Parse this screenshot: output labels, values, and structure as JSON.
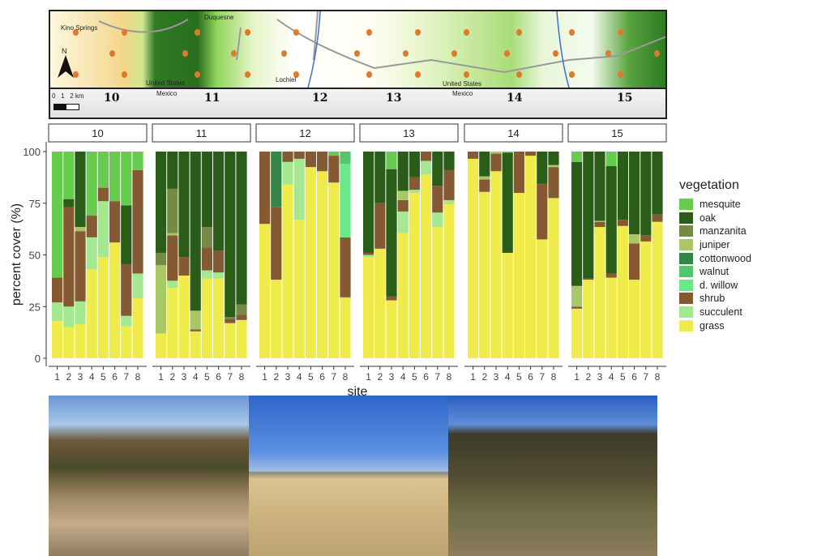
{
  "map": {
    "places": [
      "Kino Springs",
      "Duquesne",
      "Lochiel"
    ],
    "border_labels": {
      "us": "United States",
      "mx": "Mexico",
      "us2": "United States",
      "mx2": "Mexico"
    },
    "north_label": "N",
    "scale_label": "0   1   2 km",
    "region_labels": [
      "10",
      "11",
      "12",
      "13",
      "14",
      "15"
    ]
  },
  "chart_data": {
    "type": "bar",
    "stacked": true,
    "facets": [
      "10",
      "11",
      "12",
      "13",
      "14",
      "15"
    ],
    "categories": [
      "1",
      "2",
      "3",
      "4",
      "5",
      "6",
      "7",
      "8"
    ],
    "xlabel": "site",
    "ylabel": "percent cover (%)",
    "ylim": [
      0,
      100
    ],
    "yticks": [
      "0",
      "25",
      "50",
      "75",
      "100"
    ],
    "legend_title": "vegetation",
    "legend_position": "right",
    "stack_order": [
      "grass",
      "succulent",
      "shrub",
      "d. willow",
      "walnut",
      "cottonwood",
      "juniper",
      "manzanita",
      "oak",
      "mesquite"
    ],
    "legend": [
      "mesquite",
      "oak",
      "manzanita",
      "juniper",
      "cottonwood",
      "walnut",
      "d. willow",
      "shrub",
      "succulent",
      "grass"
    ],
    "colors": {
      "mesquite": "#66cc4d",
      "oak": "#2a5e18",
      "manzanita": "#758a45",
      "juniper": "#a8c866",
      "cottonwood": "#348548",
      "walnut": "#55c470",
      "d. willow": "#6be887",
      "shrub": "#855a33",
      "succulent": "#a4e890",
      "grass": "#eeeb4a"
    },
    "data": {
      "10": [
        {
          "grass": 18,
          "succulent": 9,
          "shrub": 12,
          "mesquite": 61
        },
        {
          "grass": 15,
          "succulent": 10,
          "shrub": 48,
          "oak": 4,
          "mesquite": 23
        },
        {
          "grass": 16.5,
          "succulent": 11,
          "shrub": 34,
          "juniper": 2,
          "oak": 36.5
        },
        {
          "grass": 43,
          "succulent": 15.5,
          "shrub": 10.5,
          "mesquite": 31
        },
        {
          "grass": 49,
          "succulent": 27,
          "shrub": 6.5,
          "mesquite": 17.5
        },
        {
          "grass": 56,
          "shrub": 20,
          "mesquite": 24
        },
        {
          "grass": 15.5,
          "succulent": 5,
          "shrub": 25,
          "oak": 28.5,
          "mesquite": 26
        },
        {
          "grass": 29,
          "succulent": 12,
          "shrub": 50,
          "mesquite": 9
        }
      ],
      "11": [
        {
          "grass": 12,
          "juniper": 33,
          "manzanita": 6,
          "oak": 49
        },
        {
          "grass": 34,
          "succulent": 3.5,
          "shrub": 22,
          "juniper": 1,
          "manzanita": 21.5,
          "oak": 18
        },
        {
          "grass": 40,
          "shrub": 9,
          "oak": 51
        },
        {
          "grass": 13,
          "shrub": 1,
          "juniper": 9,
          "oak": 77
        },
        {
          "grass": 38.5,
          "succulent": 4,
          "shrub": 11,
          "manzanita": 10,
          "oak": 36.5
        },
        {
          "grass": 38.5,
          "succulent": 3,
          "shrub": 10.5,
          "oak": 48
        },
        {
          "grass": 17,
          "shrub": 2,
          "manzanita": 1,
          "oak": 80
        },
        {
          "grass": 18.5,
          "shrub": 2.5,
          "manzanita": 5,
          "oak": 74
        }
      ],
      "12": [
        {
          "grass": 65,
          "shrub": 35
        },
        {
          "grass": 38,
          "shrub": 35,
          "cottonwood": 27
        },
        {
          "grass": 84,
          "succulent": 11,
          "shrub": 5
        },
        {
          "grass": 67,
          "succulent": 29.5,
          "shrub": 3.5
        },
        {
          "grass": 92.5,
          "shrub": 7.5
        },
        {
          "grass": 90.5,
          "shrub": 9.5
        },
        {
          "grass": 85,
          "shrub": 13,
          "mesquite": 2
        },
        {
          "grass": 29,
          "succulent": 0.5,
          "shrub": 29,
          "d. willow": 35.5,
          "walnut": 6
        }
      ],
      "13": [
        {
          "grass": 49,
          "succulent": 1,
          "shrub": 1,
          "oak": 49
        },
        {
          "grass": 53,
          "shrub": 22,
          "oak": 25
        },
        {
          "grass": 28,
          "shrub": 2,
          "oak": 61.5,
          "mesquite": 8.5
        },
        {
          "grass": 60.5,
          "succulent": 10.5,
          "shrub": 5.5,
          "juniper": 4.5,
          "oak": 19
        },
        {
          "grass": 80,
          "succulent": 1.5,
          "shrub": 6,
          "oak": 12.5
        },
        {
          "grass": 89,
          "succulent": 6.5,
          "shrub": 4.5
        },
        {
          "grass": 63.5,
          "succulent": 7,
          "shrub": 13,
          "oak": 16.5
        },
        {
          "grass": 74.5,
          "succulent": 2,
          "shrub": 14.5,
          "oak": 9
        }
      ],
      "14": [
        {
          "grass": 96.5,
          "shrub": 3.5
        },
        {
          "grass": 80.5,
          "shrub": 6,
          "juniper": 1.5,
          "oak": 12
        },
        {
          "grass": 90.5,
          "shrub": 8.5,
          "juniper": 1
        },
        {
          "grass": 51,
          "oak": 48.5,
          "mesquite": 0.5
        },
        {
          "grass": 80,
          "shrub": 20
        },
        {
          "grass": 98,
          "shrub": 2
        },
        {
          "grass": 57.5,
          "shrub": 27,
          "oak": 15.5
        },
        {
          "grass": 77.5,
          "shrub": 15,
          "juniper": 1,
          "oak": 6.5
        }
      ],
      "15": [
        {
          "grass": 24,
          "shrub": 1,
          "juniper": 10,
          "oak": 60,
          "mesquite": 5
        },
        {
          "grass": 38,
          "shrub": 0.5,
          "oak": 61.5
        },
        {
          "grass": 63.5,
          "shrub": 2.5,
          "juniper": 0.5,
          "oak": 33.5
        },
        {
          "grass": 39,
          "shrub": 2,
          "oak": 52,
          "mesquite": 7
        },
        {
          "grass": 64,
          "shrub": 3,
          "oak": 33
        },
        {
          "grass": 38,
          "shrub": 17.5,
          "juniper": 4.5,
          "oak": 40
        },
        {
          "grass": 56.5,
          "shrub": 3,
          "oak": 40.5
        },
        {
          "grass": 66,
          "shrub": 3.5,
          "oak": 30.5
        }
      ]
    }
  }
}
